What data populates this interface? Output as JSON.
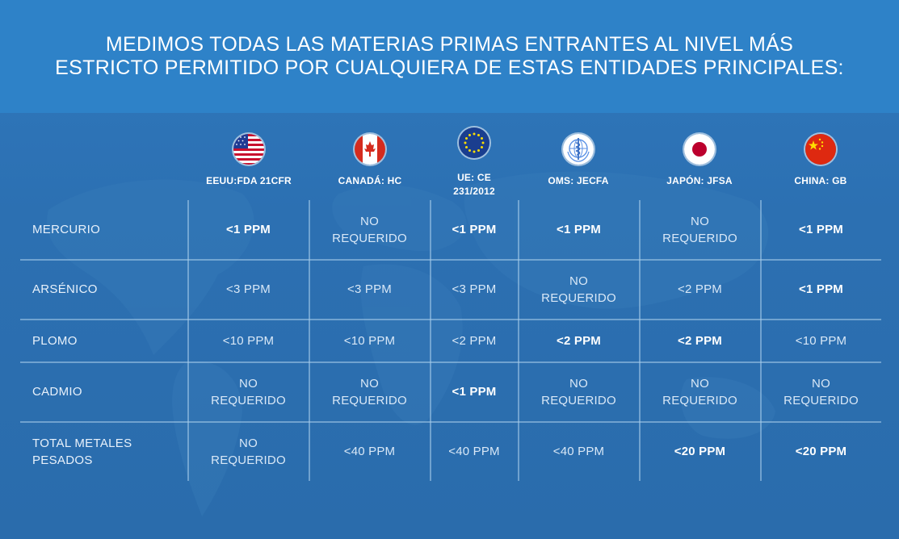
{
  "banner": {
    "line1": "MEDIMOS TODAS LAS MATERIAS PRIMAS ENTRANTES AL NIVEL MÁS",
    "line2": "ESTRICTO PERMITIDO POR CUALQUIERA DE ESTAS ENTIDADES PRINCIPALES:"
  },
  "columns": [
    {
      "label": "EEUU:FDA 21CFR",
      "icon": "usa-flag-icon"
    },
    {
      "label": "CANADÁ: HC",
      "icon": "canada-flag-icon"
    },
    {
      "label_line1": "UE: CE",
      "label_line2": "231/2012",
      "icon": "eu-flag-icon"
    },
    {
      "label": "OMS: JECFA",
      "icon": "who-emblem-icon"
    },
    {
      "label": "JAPÓN: JFSA",
      "icon": "japan-flag-icon"
    },
    {
      "label": "CHINA: GB",
      "icon": "china-flag-icon"
    }
  ],
  "rows": [
    {
      "label": "MERCURIO",
      "cells": [
        {
          "v": "<1 PPM",
          "bold": true
        },
        {
          "l1": "NO",
          "l2": "REQUERIDO",
          "bold": false
        },
        {
          "v": "<1 PPM",
          "bold": true
        },
        {
          "v": "<1 PPM",
          "bold": true
        },
        {
          "l1": "NO",
          "l2": "REQUERIDO",
          "bold": false
        },
        {
          "v": "<1 PPM",
          "bold": true
        }
      ]
    },
    {
      "label": "ARSÉNICO",
      "cells": [
        {
          "v": "<3 PPM",
          "bold": false
        },
        {
          "v": "<3 PPM",
          "bold": false
        },
        {
          "v": "<3 PPM",
          "bold": false
        },
        {
          "l1": "NO",
          "l2": "REQUERIDO",
          "bold": false
        },
        {
          "v": "<2 PPM",
          "bold": false
        },
        {
          "v": "<1 PPM",
          "bold": true
        }
      ]
    },
    {
      "label": "PLOMO",
      "cells": [
        {
          "v": "<10 PPM",
          "bold": false
        },
        {
          "v": "<10 PPM",
          "bold": false
        },
        {
          "v": "<2 PPM",
          "bold": false
        },
        {
          "v": "<2 PPM",
          "bold": true
        },
        {
          "v": "<2 PPM",
          "bold": true
        },
        {
          "v": "<10 PPM",
          "bold": false
        }
      ]
    },
    {
      "label": "CADMIO",
      "cells": [
        {
          "l1": "NO",
          "l2": "REQUERIDO",
          "bold": false
        },
        {
          "l1": "NO",
          "l2": "REQUERIDO",
          "bold": false
        },
        {
          "v": "<1 PPM",
          "bold": true
        },
        {
          "l1": "NO",
          "l2": "REQUERIDO",
          "bold": false
        },
        {
          "l1": "NO",
          "l2": "REQUERIDO",
          "bold": false
        },
        {
          "l1": "NO",
          "l2": "REQUERIDO",
          "bold": false
        }
      ]
    },
    {
      "label_line1": "TOTAL METALES",
      "label_line2": "PESADOS",
      "cells": [
        {
          "l1": "NO",
          "l2": "REQUERIDO",
          "bold": false
        },
        {
          "v": "<40 PPM",
          "bold": false
        },
        {
          "v": "<40 PPM",
          "bold": false
        },
        {
          "v": "<40 PPM",
          "bold": false
        },
        {
          "v": "<20 PPM",
          "bold": true
        },
        {
          "v": "<20 PPM",
          "bold": true
        }
      ]
    }
  ],
  "colors": {
    "banner": "#2e82c8",
    "background": "#2b6fb0",
    "grid_line": "#aacdeb"
  }
}
